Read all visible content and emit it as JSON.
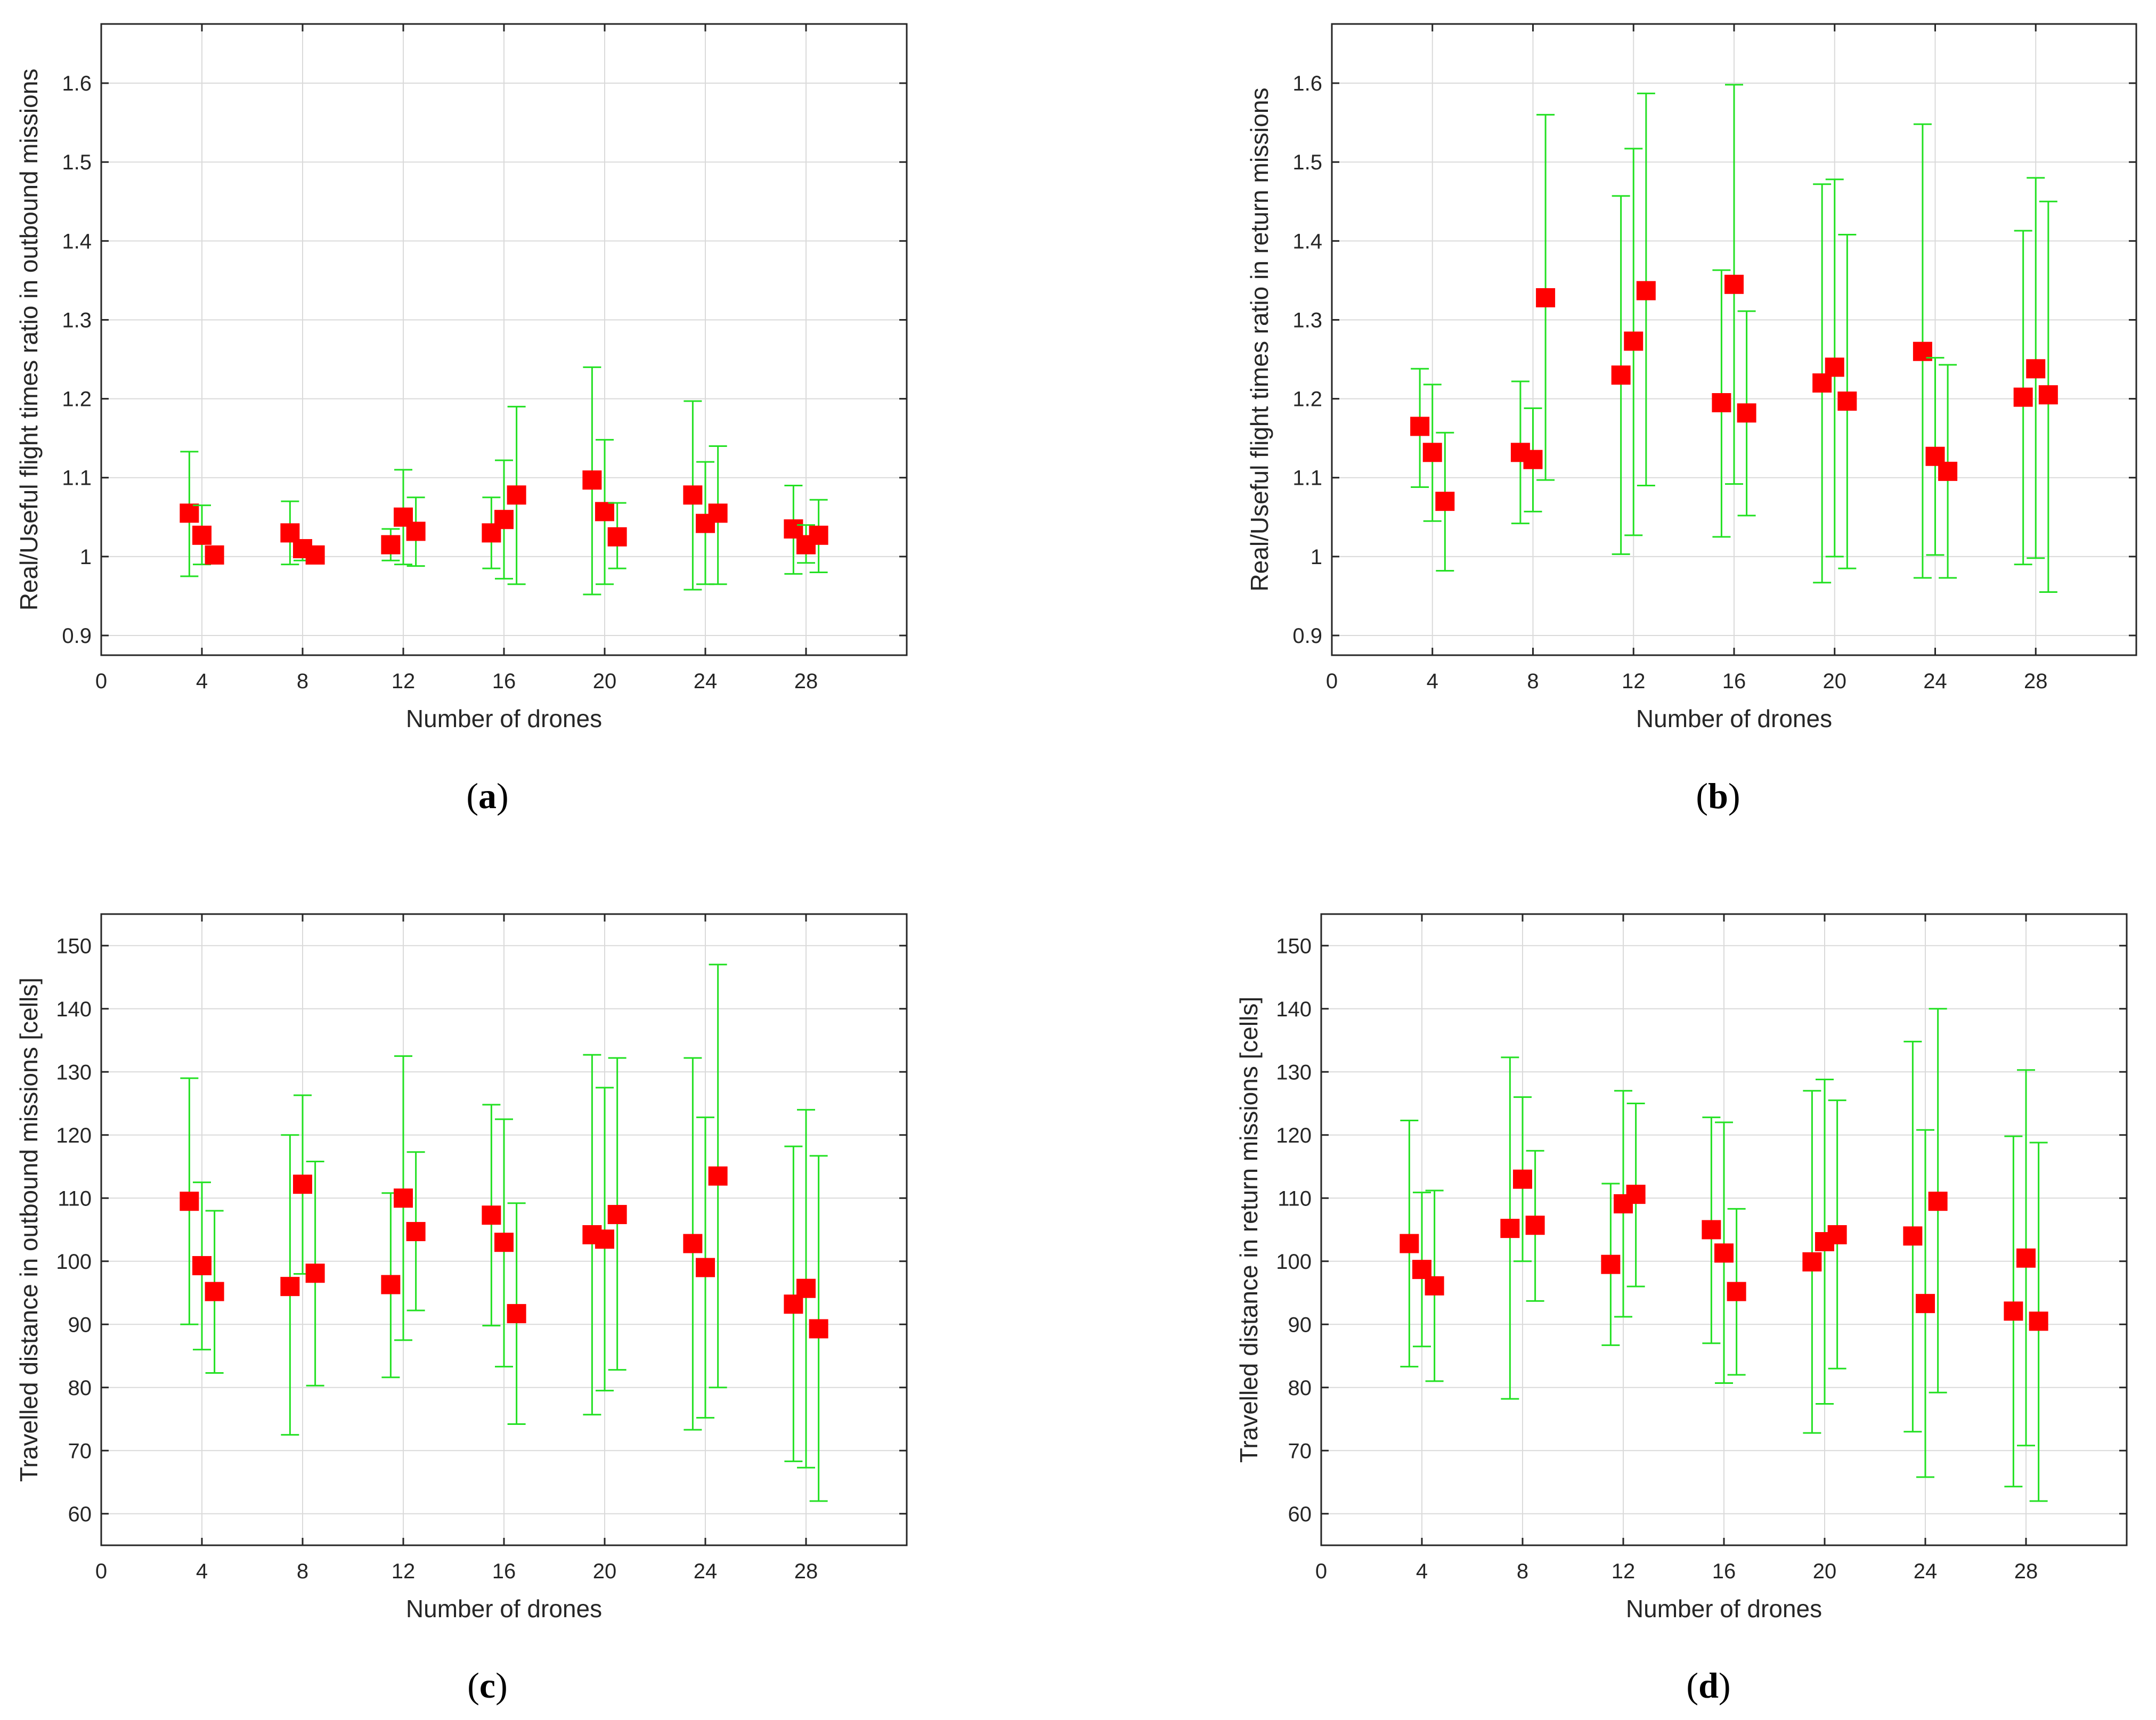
{
  "colors": {
    "marker": "#ff0000",
    "errorbar": "#22e022",
    "grid": "#dadada",
    "axis": "#262626",
    "tick_text": "#262626"
  },
  "chart_data": [
    {
      "id": "a",
      "type": "scatter",
      "caption_letter": "a",
      "xlabel": "Number of drones",
      "ylabel": "Real/Useful flight times ratio in outbound missions",
      "xlim": [
        0,
        32
      ],
      "ylim": [
        0.875,
        1.675
      ],
      "xticks": [
        0,
        4,
        8,
        12,
        16,
        20,
        24,
        28
      ],
      "yticks": [
        0.9,
        1,
        1.1,
        1.2,
        1.3,
        1.4,
        1.5,
        1.6
      ],
      "ytick_labels": [
        "0.9",
        "1",
        "1.1",
        "1.2",
        "1.3",
        "1.4",
        "1.5",
        "1.6"
      ],
      "points": [
        {
          "x": 3.5,
          "y": 1.055,
          "lo": 0.975,
          "hi": 1.133
        },
        {
          "x": 4.0,
          "y": 1.027,
          "lo": 0.99,
          "hi": 1.065
        },
        {
          "x": 4.5,
          "y": 1.002,
          "lo": 0.998,
          "hi": 1.006
        },
        {
          "x": 7.5,
          "y": 1.03,
          "lo": 0.99,
          "hi": 1.07
        },
        {
          "x": 8.0,
          "y": 1.01,
          "lo": 0.995,
          "hi": 1.02
        },
        {
          "x": 8.5,
          "y": 1.002,
          "lo": 0.998,
          "hi": 1.006
        },
        {
          "x": 11.5,
          "y": 1.015,
          "lo": 0.995,
          "hi": 1.035
        },
        {
          "x": 12.0,
          "y": 1.05,
          "lo": 0.99,
          "hi": 1.11
        },
        {
          "x": 12.5,
          "y": 1.032,
          "lo": 0.988,
          "hi": 1.075
        },
        {
          "x": 15.5,
          "y": 1.03,
          "lo": 0.985,
          "hi": 1.075
        },
        {
          "x": 16.0,
          "y": 1.047,
          "lo": 0.972,
          "hi": 1.122
        },
        {
          "x": 16.5,
          "y": 1.078,
          "lo": 0.965,
          "hi": 1.19
        },
        {
          "x": 19.5,
          "y": 1.097,
          "lo": 0.952,
          "hi": 1.24
        },
        {
          "x": 20.0,
          "y": 1.057,
          "lo": 0.965,
          "hi": 1.148
        },
        {
          "x": 20.5,
          "y": 1.025,
          "lo": 0.985,
          "hi": 1.068
        },
        {
          "x": 23.5,
          "y": 1.078,
          "lo": 0.958,
          "hi": 1.197
        },
        {
          "x": 24.0,
          "y": 1.042,
          "lo": 0.965,
          "hi": 1.12
        },
        {
          "x": 24.5,
          "y": 1.055,
          "lo": 0.965,
          "hi": 1.14
        },
        {
          "x": 27.5,
          "y": 1.035,
          "lo": 0.978,
          "hi": 1.09
        },
        {
          "x": 28.0,
          "y": 1.015,
          "lo": 0.992,
          "hi": 1.04
        },
        {
          "x": 28.5,
          "y": 1.027,
          "lo": 0.98,
          "hi": 1.072
        }
      ]
    },
    {
      "id": "b",
      "type": "scatter",
      "caption_letter": "b",
      "xlabel": "Number of drones",
      "ylabel": "Real/Useful flight times ratio in return missions",
      "xlim": [
        0,
        32
      ],
      "ylim": [
        0.875,
        1.675
      ],
      "xticks": [
        0,
        4,
        8,
        12,
        16,
        20,
        24,
        28
      ],
      "yticks": [
        0.9,
        1,
        1.1,
        1.2,
        1.3,
        1.4,
        1.5,
        1.6
      ],
      "ytick_labels": [
        "0.9",
        "1",
        "1.1",
        "1.2",
        "1.3",
        "1.4",
        "1.5",
        "1.6"
      ],
      "points": [
        {
          "x": 3.5,
          "y": 1.165,
          "lo": 1.088,
          "hi": 1.238
        },
        {
          "x": 4.0,
          "y": 1.132,
          "lo": 1.045,
          "hi": 1.218
        },
        {
          "x": 4.5,
          "y": 1.07,
          "lo": 0.982,
          "hi": 1.157
        },
        {
          "x": 7.5,
          "y": 1.132,
          "lo": 1.042,
          "hi": 1.222
        },
        {
          "x": 8.0,
          "y": 1.123,
          "lo": 1.057,
          "hi": 1.188
        },
        {
          "x": 8.5,
          "y": 1.328,
          "lo": 1.097,
          "hi": 1.56
        },
        {
          "x": 11.5,
          "y": 1.23,
          "lo": 1.003,
          "hi": 1.457
        },
        {
          "x": 12.0,
          "y": 1.273,
          "lo": 1.027,
          "hi": 1.517
        },
        {
          "x": 12.5,
          "y": 1.337,
          "lo": 1.09,
          "hi": 1.587
        },
        {
          "x": 15.5,
          "y": 1.195,
          "lo": 1.025,
          "hi": 1.363
        },
        {
          "x": 16.0,
          "y": 1.345,
          "lo": 1.092,
          "hi": 1.598
        },
        {
          "x": 16.5,
          "y": 1.182,
          "lo": 1.052,
          "hi": 1.311
        },
        {
          "x": 19.5,
          "y": 1.22,
          "lo": 0.967,
          "hi": 1.472
        },
        {
          "x": 20.0,
          "y": 1.24,
          "lo": 1.0,
          "hi": 1.478
        },
        {
          "x": 20.5,
          "y": 1.197,
          "lo": 0.985,
          "hi": 1.408
        },
        {
          "x": 23.5,
          "y": 1.26,
          "lo": 0.973,
          "hi": 1.548
        },
        {
          "x": 24.0,
          "y": 1.127,
          "lo": 1.002,
          "hi": 1.252
        },
        {
          "x": 24.5,
          "y": 1.108,
          "lo": 0.973,
          "hi": 1.243
        },
        {
          "x": 27.5,
          "y": 1.202,
          "lo": 0.99,
          "hi": 1.413
        },
        {
          "x": 28.0,
          "y": 1.238,
          "lo": 0.998,
          "hi": 1.48
        },
        {
          "x": 28.5,
          "y": 1.205,
          "lo": 0.955,
          "hi": 1.45
        }
      ]
    },
    {
      "id": "c",
      "type": "scatter",
      "caption_letter": "c",
      "xlabel": "Number of drones",
      "ylabel": "Travelled distance in outbound missions [cells]",
      "xlim": [
        0,
        32
      ],
      "ylim": [
        55,
        155
      ],
      "xticks": [
        0,
        4,
        8,
        12,
        16,
        20,
        24,
        28
      ],
      "yticks": [
        60,
        70,
        80,
        90,
        100,
        110,
        120,
        130,
        140,
        150
      ],
      "ytick_labels": [
        "60",
        "70",
        "80",
        "90",
        "100",
        "110",
        "120",
        "130",
        "140",
        "150"
      ],
      "points": [
        {
          "x": 3.5,
          "y": 109.5,
          "lo": 90.0,
          "hi": 129.0
        },
        {
          "x": 4.0,
          "y": 99.3,
          "lo": 86.0,
          "hi": 112.5
        },
        {
          "x": 4.5,
          "y": 95.2,
          "lo": 82.3,
          "hi": 108.0
        },
        {
          "x": 7.5,
          "y": 96.0,
          "lo": 72.5,
          "hi": 120.0
        },
        {
          "x": 8.0,
          "y": 112.2,
          "lo": 98.0,
          "hi": 126.3
        },
        {
          "x": 8.5,
          "y": 98.1,
          "lo": 80.3,
          "hi": 115.8
        },
        {
          "x": 11.5,
          "y": 96.3,
          "lo": 81.6,
          "hi": 110.8
        },
        {
          "x": 12.0,
          "y": 110.0,
          "lo": 87.5,
          "hi": 132.5
        },
        {
          "x": 12.5,
          "y": 104.7,
          "lo": 92.2,
          "hi": 117.3
        },
        {
          "x": 15.5,
          "y": 107.3,
          "lo": 89.8,
          "hi": 124.8
        },
        {
          "x": 16.0,
          "y": 103.0,
          "lo": 83.3,
          "hi": 122.5
        },
        {
          "x": 16.5,
          "y": 91.7,
          "lo": 74.2,
          "hi": 109.2
        },
        {
          "x": 19.5,
          "y": 104.2,
          "lo": 75.7,
          "hi": 132.7
        },
        {
          "x": 20.0,
          "y": 103.5,
          "lo": 79.5,
          "hi": 127.5
        },
        {
          "x": 20.5,
          "y": 107.4,
          "lo": 82.8,
          "hi": 132.2
        },
        {
          "x": 23.5,
          "y": 102.8,
          "lo": 73.3,
          "hi": 132.2
        },
        {
          "x": 24.0,
          "y": 99.0,
          "lo": 75.2,
          "hi": 122.8
        },
        {
          "x": 24.5,
          "y": 113.5,
          "lo": 80.0,
          "hi": 147.0
        },
        {
          "x": 27.5,
          "y": 93.2,
          "lo": 68.3,
          "hi": 118.2
        },
        {
          "x": 28.0,
          "y": 95.7,
          "lo": 67.3,
          "hi": 124.0
        },
        {
          "x": 28.5,
          "y": 89.3,
          "lo": 62.0,
          "hi": 116.7
        }
      ]
    },
    {
      "id": "d",
      "type": "scatter",
      "caption_letter": "d",
      "xlabel": "Number of drones",
      "ylabel": "Travelled distance in return missions [cells]",
      "xlim": [
        0,
        32
      ],
      "ylim": [
        55,
        155
      ],
      "xticks": [
        0,
        4,
        8,
        12,
        16,
        20,
        24,
        28
      ],
      "yticks": [
        60,
        70,
        80,
        90,
        100,
        110,
        120,
        130,
        140,
        150
      ],
      "ytick_labels": [
        "60",
        "70",
        "80",
        "90",
        "100",
        "110",
        "120",
        "130",
        "140",
        "150"
      ],
      "points": [
        {
          "x": 3.5,
          "y": 102.8,
          "lo": 83.3,
          "hi": 122.3
        },
        {
          "x": 4.0,
          "y": 98.7,
          "lo": 86.5,
          "hi": 110.9
        },
        {
          "x": 4.5,
          "y": 96.1,
          "lo": 81.0,
          "hi": 111.2
        },
        {
          "x": 7.5,
          "y": 105.2,
          "lo": 78.2,
          "hi": 132.3
        },
        {
          "x": 8.0,
          "y": 113.0,
          "lo": 100.0,
          "hi": 126.0
        },
        {
          "x": 8.5,
          "y": 105.7,
          "lo": 93.7,
          "hi": 117.5
        },
        {
          "x": 11.5,
          "y": 99.5,
          "lo": 86.7,
          "hi": 112.3
        },
        {
          "x": 12.0,
          "y": 109.1,
          "lo": 91.2,
          "hi": 127.0
        },
        {
          "x": 12.5,
          "y": 110.6,
          "lo": 96.0,
          "hi": 125.0
        },
        {
          "x": 15.5,
          "y": 105.0,
          "lo": 87.0,
          "hi": 122.8
        },
        {
          "x": 16.0,
          "y": 101.3,
          "lo": 80.7,
          "hi": 122.0
        },
        {
          "x": 16.5,
          "y": 95.2,
          "lo": 82.0,
          "hi": 108.3
        },
        {
          "x": 19.5,
          "y": 99.9,
          "lo": 72.8,
          "hi": 127.0
        },
        {
          "x": 20.0,
          "y": 103.1,
          "lo": 77.4,
          "hi": 128.8
        },
        {
          "x": 20.5,
          "y": 104.2,
          "lo": 83.0,
          "hi": 125.5
        },
        {
          "x": 23.5,
          "y": 104.0,
          "lo": 73.0,
          "hi": 134.8
        },
        {
          "x": 24.0,
          "y": 93.3,
          "lo": 65.8,
          "hi": 120.8
        },
        {
          "x": 24.5,
          "y": 109.5,
          "lo": 79.2,
          "hi": 140.0
        },
        {
          "x": 27.5,
          "y": 92.1,
          "lo": 64.3,
          "hi": 119.8
        },
        {
          "x": 28.0,
          "y": 100.5,
          "lo": 70.8,
          "hi": 130.3
        },
        {
          "x": 28.5,
          "y": 90.5,
          "lo": 62.0,
          "hi": 118.8
        }
      ]
    }
  ]
}
